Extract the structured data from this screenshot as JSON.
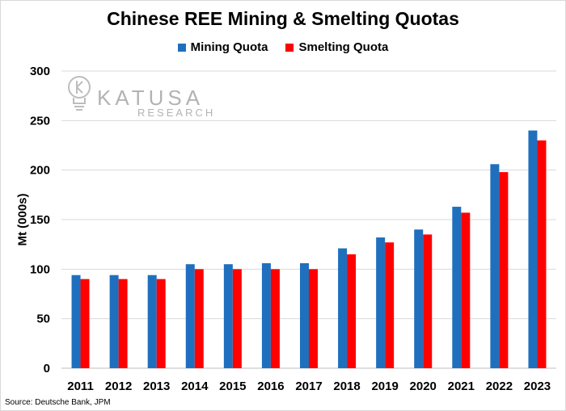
{
  "chart_data": {
    "type": "bar",
    "title": "Chinese REE Mining & Smelting Quotas",
    "xlabel": "",
    "ylabel": "Mt (000s)",
    "ylim": [
      0,
      300
    ],
    "yticks": [
      0,
      50,
      100,
      150,
      200,
      250,
      300
    ],
    "grid": true,
    "legend_position": "top-center",
    "categories": [
      "2011",
      "2012",
      "2013",
      "2014",
      "2015",
      "2016",
      "2017",
      "2018",
      "2019",
      "2020",
      "2021",
      "2022",
      "2023"
    ],
    "series": [
      {
        "name": "Mining Quota",
        "color": "#1f6fbf",
        "values": [
          94,
          94,
          94,
          105,
          105,
          106,
          106,
          121,
          132,
          140,
          163,
          206,
          240
        ]
      },
      {
        "name": "Smelting Quota",
        "color": "#ff0000",
        "values": [
          90,
          90,
          90,
          100,
          100,
          100,
          100,
          115,
          127,
          135,
          157,
          198,
          230
        ]
      }
    ]
  },
  "watermark": {
    "brand": "KATUSA",
    "sub": "RESEARCH",
    "icon": "lightbulb-icon"
  },
  "source": "Source: Deutsche Bank, JPM"
}
